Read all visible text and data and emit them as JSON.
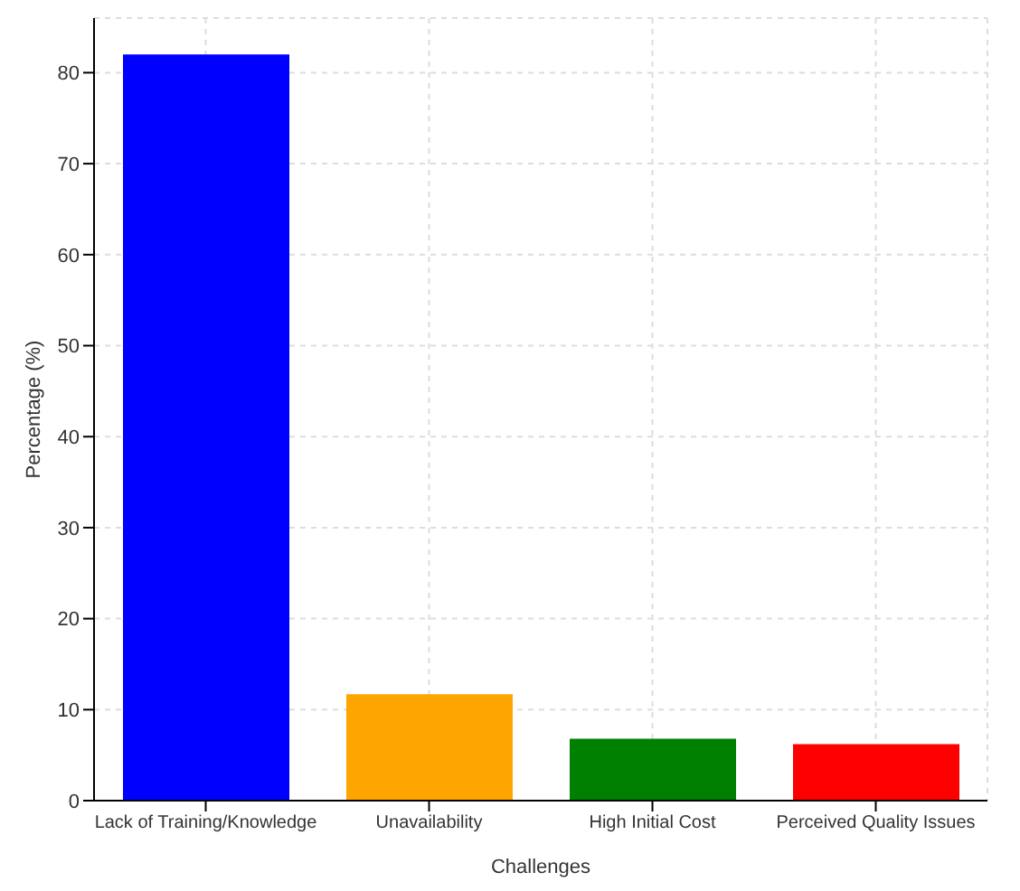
{
  "chart_data": {
    "type": "bar",
    "xlabel": "Challenges",
    "ylabel": "Percentage (%)",
    "categories": [
      "Lack of Training/Knowledge",
      "Unavailability",
      "High Initial Cost",
      "Perceived Quality Issues"
    ],
    "values": [
      82,
      11.7,
      6.8,
      6.2
    ],
    "colors": [
      "#0000ff",
      "#ffa500",
      "#008000",
      "#ff0000"
    ],
    "ylim": [
      0,
      86
    ],
    "yticks": [
      0,
      10,
      20,
      30,
      40,
      50,
      60,
      70,
      80
    ],
    "grid": true
  }
}
